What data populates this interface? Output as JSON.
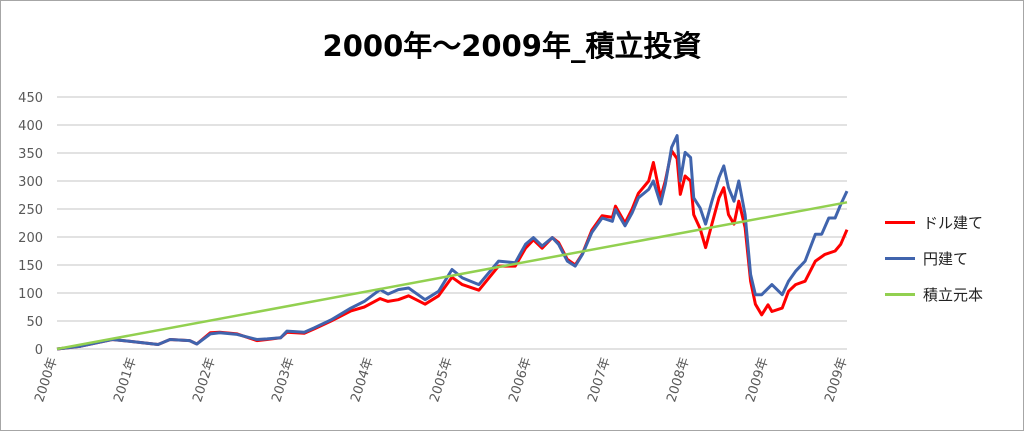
{
  "chart_data": {
    "type": "line",
    "title": "2000年～2009年_積立投資",
    "xlabel": "",
    "ylabel": "",
    "ylim": [
      0,
      450
    ],
    "xlim": [
      2000,
      2010
    ],
    "yticks": [
      0,
      50,
      100,
      150,
      200,
      250,
      300,
      350,
      400,
      450
    ],
    "xtick_labels": [
      "2000年",
      "2001年",
      "2002年",
      "2003年",
      "2004年",
      "2005年",
      "2006年",
      "2007年",
      "2008年",
      "2009年",
      "2009年"
    ],
    "grid": true,
    "legend_position": "right",
    "series": [
      {
        "name": "ドル建て",
        "color": "#ff0000",
        "x": [
          2000,
          2000.3,
          2000.7,
          2001.0,
          2001.28,
          2001.43,
          2001.68,
          2001.77,
          2001.94,
          2002.06,
          2002.28,
          2002.53,
          2002.66,
          2002.83,
          2002.91,
          2003.13,
          2003.26,
          2003.47,
          2003.72,
          2003.89,
          2004.09,
          2004.19,
          2004.32,
          2004.45,
          2004.66,
          2004.83,
          2005.0,
          2005.13,
          2005.34,
          2005.59,
          2005.8,
          2005.93,
          2006.03,
          2006.14,
          2006.27,
          2006.35,
          2006.46,
          2006.56,
          2006.65,
          2006.77,
          2006.9,
          2007.03,
          2007.07,
          2007.19,
          2007.28,
          2007.36,
          2007.49,
          2007.55,
          2007.64,
          2007.7,
          2007.78,
          2007.85,
          2007.89,
          2007.95,
          2008.02,
          2008.06,
          2008.14,
          2008.21,
          2008.29,
          2008.38,
          2008.44,
          2008.5,
          2008.57,
          2008.63,
          2008.71,
          2008.78,
          2008.84,
          2008.92,
          2009.0,
          2009.05,
          2009.18,
          2009.26,
          2009.35,
          2009.47,
          2009.6,
          2009.72,
          2009.85,
          2009.92,
          2010.0
        ],
        "y": [
          0,
          5,
          17,
          12.5,
          8,
          17,
          15,
          9,
          29,
          30,
          27,
          15,
          17,
          20,
          30,
          28,
          36,
          50,
          68,
          75,
          90,
          85,
          88,
          95,
          80,
          95,
          128,
          115,
          105,
          148,
          148,
          180,
          195,
          180,
          199,
          190,
          160,
          150,
          170,
          212,
          238,
          235,
          255,
          225,
          250,
          278,
          300,
          333,
          270,
          300,
          354,
          340,
          276,
          309,
          300,
          240,
          215,
          181,
          223,
          270,
          288,
          240,
          223,
          264,
          217,
          121,
          80,
          61,
          79,
          67,
          73,
          103,
          115,
          121,
          157,
          169,
          175,
          187,
          213
        ]
      },
      {
        "name": "円建て",
        "color": "#4064ad",
        "x": [
          2000,
          2000.3,
          2000.7,
          2001.0,
          2001.28,
          2001.43,
          2001.68,
          2001.77,
          2001.94,
          2002.06,
          2002.28,
          2002.53,
          2002.66,
          2002.83,
          2002.91,
          2003.13,
          2003.26,
          2003.47,
          2003.72,
          2003.89,
          2004.09,
          2004.19,
          2004.32,
          2004.45,
          2004.66,
          2004.83,
          2005.0,
          2005.13,
          2005.34,
          2005.59,
          2005.8,
          2005.93,
          2006.03,
          2006.14,
          2006.27,
          2006.35,
          2006.46,
          2006.56,
          2006.65,
          2006.77,
          2006.9,
          2007.03,
          2007.07,
          2007.19,
          2007.28,
          2007.36,
          2007.49,
          2007.55,
          2007.64,
          2007.7,
          2007.78,
          2007.85,
          2007.89,
          2007.95,
          2008.02,
          2008.06,
          2008.14,
          2008.21,
          2008.29,
          2008.38,
          2008.44,
          2008.5,
          2008.57,
          2008.63,
          2008.71,
          2008.78,
          2008.84,
          2008.92,
          2009.05,
          2009.18,
          2009.26,
          2009.35,
          2009.47,
          2009.6,
          2009.68,
          2009.77,
          2009.85,
          2009.92,
          2010.0
        ],
        "y": [
          0,
          5,
          17,
          12.5,
          8,
          17,
          15,
          9,
          27,
          29,
          26,
          17,
          18,
          20,
          32,
          30,
          38,
          52,
          73,
          85,
          106,
          98,
          106,
          109,
          88,
          103,
          142,
          127,
          115,
          157,
          154,
          187,
          199,
          184,
          199,
          187,
          157,
          148,
          169,
          208,
          234,
          228,
          249,
          220,
          243,
          270,
          285,
          300,
          259,
          294,
          360,
          381,
          300,
          351,
          342,
          270,
          252,
          223,
          264,
          306,
          327,
          288,
          264,
          300,
          240,
          133,
          97,
          97,
          115,
          97,
          121,
          139,
          157,
          205,
          205,
          234,
          234,
          258,
          282
        ]
      },
      {
        "name": "積立元本",
        "color": "#92d050",
        "x": [
          2000,
          2010
        ],
        "y": [
          0,
          262
        ]
      }
    ]
  }
}
